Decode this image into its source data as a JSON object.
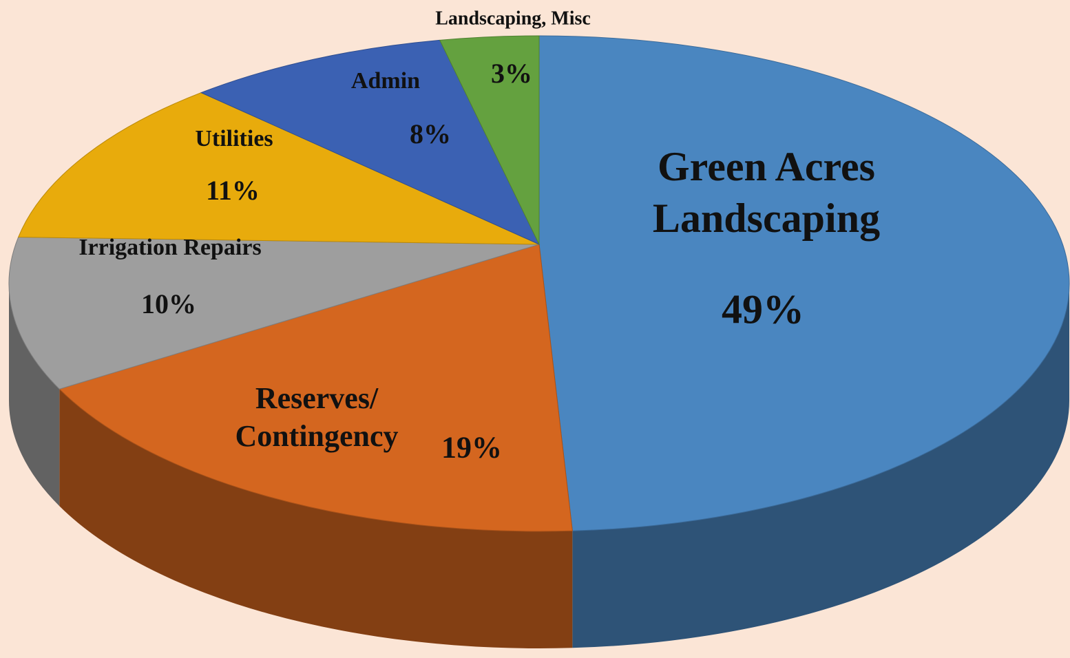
{
  "chart_data": {
    "type": "pie",
    "categories": [
      "Green Acres Landscaping",
      "Reserves/ Contingency",
      "Irrigation Repairs",
      "Utilities",
      "Admin",
      "Landscaping, Misc"
    ],
    "values": [
      49,
      19,
      10,
      11,
      8,
      3
    ],
    "value_labels": [
      "49%",
      "19%",
      "10%",
      "11%",
      "8%",
      "3%"
    ],
    "colors": [
      "#4a86c0",
      "#d4661f",
      "#9e9e9e",
      "#e8ab0c",
      "#3b61b3",
      "#64a13f"
    ]
  }
}
